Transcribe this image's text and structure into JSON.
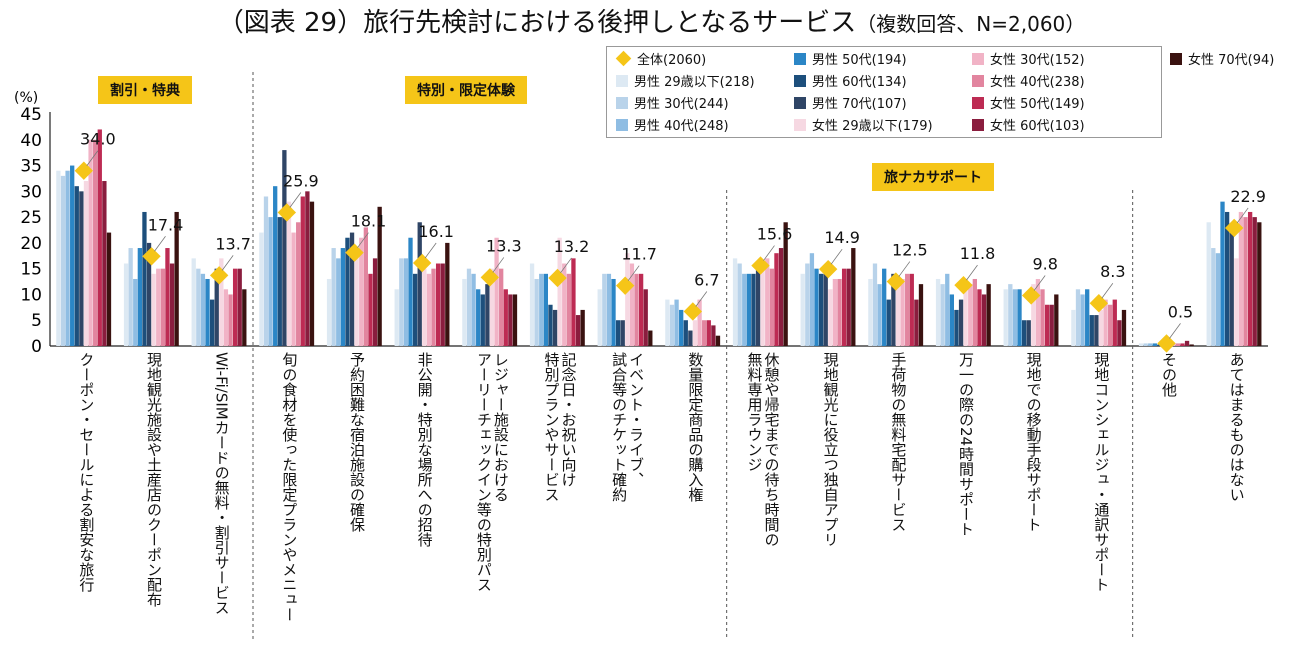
{
  "title": "（図表 29）旅行先検討における後押しとなるサービス",
  "subtitle": "（複数回答、N=2,060）",
  "sections": [
    "割引・特典",
    "特別・限定体験",
    "旅ナカサポート"
  ],
  "colors": {
    "total_marker": "#f5c518",
    "section_bg": "#f5c518",
    "series": [
      "#dde9f3",
      "#b9d3ea",
      "#8fbde3",
      "#2b86c6",
      "#1d4f7c",
      "#2f4566",
      "#f6d8e2",
      "#f1b3c6",
      "#e2859f",
      "#bd2b53",
      "#8a1d3e",
      "#3a1210"
    ]
  },
  "chart_data": {
    "type": "bar",
    "ylabel": "(%)",
    "ylim": [
      0,
      45
    ],
    "yticks": [
      0,
      5,
      10,
      15,
      20,
      25,
      30,
      35,
      40,
      45
    ],
    "categories": [
      "クーポン・セールによる割安な旅行",
      "現地観光施設や土産店のクーポン配布",
      "Wi-Fi/SIMカードの無料・割引サービス",
      "旬の食材を使った限定プランやメニュー",
      "予約困難な宿泊施設の確保",
      "非公開・特別な場所への招待",
      "レジャー施設における\nアーリーチェックイン等の特別パス",
      "記念日・お祝い向け\n特別プランやサービス",
      "イベント・ライブ、\n試合等のチケット確約",
      "数量限定商品の購入権",
      "休憩や帰宅までの待ち時間の\n無料専用ラウンジ",
      "現地観光に役立つ独自アプリ",
      "手荷物の無料宅配サービス",
      "万一の際の24時間サポート",
      "現地での移動手段サポート",
      "現地コンシェルジュ・通訳サポート",
      "その他",
      "あてはまるものはない"
    ],
    "total": {
      "name": "全体(2060)",
      "values": [
        34.0,
        17.4,
        13.7,
        25.9,
        18.1,
        16.1,
        13.3,
        13.2,
        11.7,
        6.7,
        15.6,
        14.9,
        12.5,
        11.8,
        9.8,
        8.3,
        0.5,
        22.9
      ],
      "labels": [
        "34.0",
        "17.4",
        "13.7",
        "25.9",
        "18.1",
        "16.1",
        "13.3",
        "13.2",
        "11.7",
        "6.7",
        "15.6",
        "14.9",
        "12.5",
        "11.8",
        "9.8",
        "8.3",
        "0.5",
        "22.9"
      ]
    },
    "series": [
      {
        "name": "男性 29歳以下(218)",
        "values": [
          34,
          16,
          17,
          22,
          13,
          11,
          13,
          16,
          11,
          9,
          17,
          14,
          13,
          13,
          11,
          7,
          0.5,
          24
        ]
      },
      {
        "name": "男性 30代(244)",
        "values": [
          33,
          19,
          15,
          29,
          19,
          17,
          15,
          13,
          14,
          8,
          16,
          16,
          16,
          12,
          12,
          11,
          0.5,
          19
        ]
      },
      {
        "name": "男性 40代(248)",
        "values": [
          34,
          13,
          14,
          25,
          17,
          17,
          14,
          14,
          14,
          9,
          14,
          18,
          12,
          14,
          11,
          10,
          0.5,
          18
        ]
      },
      {
        "name": "男性 50代(194)",
        "values": [
          35,
          19,
          13,
          31,
          19,
          21,
          11,
          14,
          13,
          7,
          14,
          15,
          15,
          10,
          11,
          11,
          0.5,
          28
        ]
      },
      {
        "name": "男性 60代(134)",
        "values": [
          31,
          26,
          9,
          25,
          21,
          14,
          10,
          8,
          5,
          5,
          14,
          14,
          9,
          7,
          5,
          6,
          0.3,
          26
        ]
      },
      {
        "name": "男性 70代(107)",
        "values": [
          30,
          20,
          15,
          38,
          22,
          24,
          12,
          7,
          5,
          3,
          15,
          14,
          14,
          9,
          5,
          6,
          0.3,
          22
        ]
      },
      {
        "name": "女性 29歳以下(179)",
        "values": [
          32,
          14,
          17,
          28,
          18,
          15,
          15,
          21,
          18,
          5,
          15,
          11,
          12,
          12,
          12,
          7,
          0.5,
          17
        ]
      },
      {
        "name": "女性 30代(152)",
        "values": [
          40,
          15,
          11,
          22,
          21,
          14,
          21,
          16,
          16,
          9,
          17,
          13,
          13,
          12,
          13,
          9,
          0.5,
          26
        ]
      },
      {
        "name": "女性 40代(238)",
        "values": [
          40,
          15,
          10,
          24,
          23,
          15,
          15,
          14,
          14,
          5,
          15,
          13,
          14,
          13,
          11,
          8,
          0.5,
          25
        ]
      },
      {
        "name": "女性 50代(149)",
        "values": [
          42,
          19,
          15,
          29,
          14,
          16,
          11,
          17,
          14,
          5,
          18,
          15,
          14,
          11,
          8,
          9,
          0.5,
          26
        ]
      },
      {
        "name": "女性 60代(103)",
        "values": [
          32,
          16,
          15,
          30,
          17,
          16,
          10,
          6,
          11,
          4,
          19,
          15,
          9,
          10,
          8,
          5,
          1,
          25
        ]
      },
      {
        "name": "女性 70代(94)",
        "values": [
          22,
          26,
          11,
          28,
          27,
          20,
          10,
          7,
          3,
          2,
          24,
          19,
          12,
          12,
          10,
          7,
          0.3,
          24
        ]
      }
    ],
    "legend_order": [
      "全体(2060)",
      "男性 29歳以下(218)",
      "男性 30代(244)",
      "男性 40代(248)",
      "男性 50代(194)",
      "男性 60代(134)",
      "男性 70代(107)",
      "女性 29歳以下(179)",
      "女性 30代(152)",
      "女性 40代(238)",
      "女性 50代(149)",
      "女性 60代(103)",
      "女性 70代(94)"
    ]
  }
}
